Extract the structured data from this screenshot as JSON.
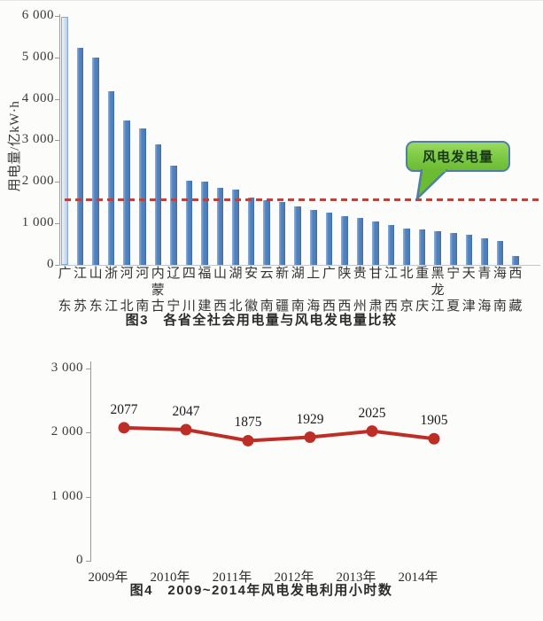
{
  "figure3": {
    "ylabel": "用电量/亿kW·h",
    "ytick_labels": [
      "6 000",
      "5 000",
      "4 000",
      "3 000",
      "2 000",
      "1 000",
      "0"
    ],
    "callout_label": "风电发电量",
    "caption": "图3　各省全社会用电量与风电发电量比较",
    "colors": {
      "bar": "#4f81bd",
      "first_bar_fill": "#d8e4f2",
      "reference_line": "#c2403a",
      "callout_fill": "#7cc844",
      "callout_border": "#4e7fa5"
    }
  },
  "figure4": {
    "ytick_labels": [
      "3 000",
      "2 000",
      "1 000",
      "0"
    ],
    "caption": "图4　2009~2014年风电发电利用小时数",
    "line_color": "#bf2e26"
  },
  "chart_data": [
    {
      "type": "bar",
      "title": "图3 各省全社会用电量与风电发电量比较",
      "xlabel": "",
      "ylabel": "用电量/亿kW·h",
      "ylim": [
        0,
        6000
      ],
      "grid": false,
      "categories": [
        "广东",
        "江苏",
        "山东",
        "浙江",
        "河北",
        "河南",
        "内蒙古",
        "辽宁",
        "四川",
        "福建",
        "山西",
        "湖北",
        "安徽",
        "云南",
        "新疆",
        "湖南",
        "上海",
        "广西",
        "陕西",
        "贵州",
        "甘肃",
        "江西",
        "北京",
        "重庆",
        "黑龙江",
        "宁夏",
        "天津",
        "青海",
        "海南",
        "西藏"
      ],
      "values": [
        5990,
        5230,
        5000,
        4180,
        3490,
        3300,
        2900,
        2400,
        2040,
        2010,
        1850,
        1820,
        1630,
        1550,
        1510,
        1400,
        1320,
        1260,
        1170,
        1130,
        1040,
        960,
        880,
        850,
        810,
        770,
        720,
        640,
        575,
        210
      ],
      "bar_color": "#4f81bd",
      "first_bar_clipped_at_axis_top": true,
      "reference_line": {
        "label": "风电发电量",
        "value": 1560,
        "style": "dashed",
        "color": "#c2403a"
      }
    },
    {
      "type": "line",
      "title": "图4 2009~2014年风电发电利用小时数",
      "xlabel": "",
      "ylabel": "",
      "ylim": [
        0,
        3000
      ],
      "grid": false,
      "categories": [
        "2009年",
        "2010年",
        "2011年",
        "2012年",
        "2013年",
        "2014年"
      ],
      "values": [
        2077,
        2047,
        1875,
        1929,
        2025,
        1905
      ],
      "ytick_values": [
        3000,
        2000,
        1000,
        0
      ],
      "line_color": "#bf2e26",
      "marker": "circle",
      "data_labels": [
        2077,
        2047,
        1875,
        1929,
        2025,
        1905
      ]
    }
  ]
}
